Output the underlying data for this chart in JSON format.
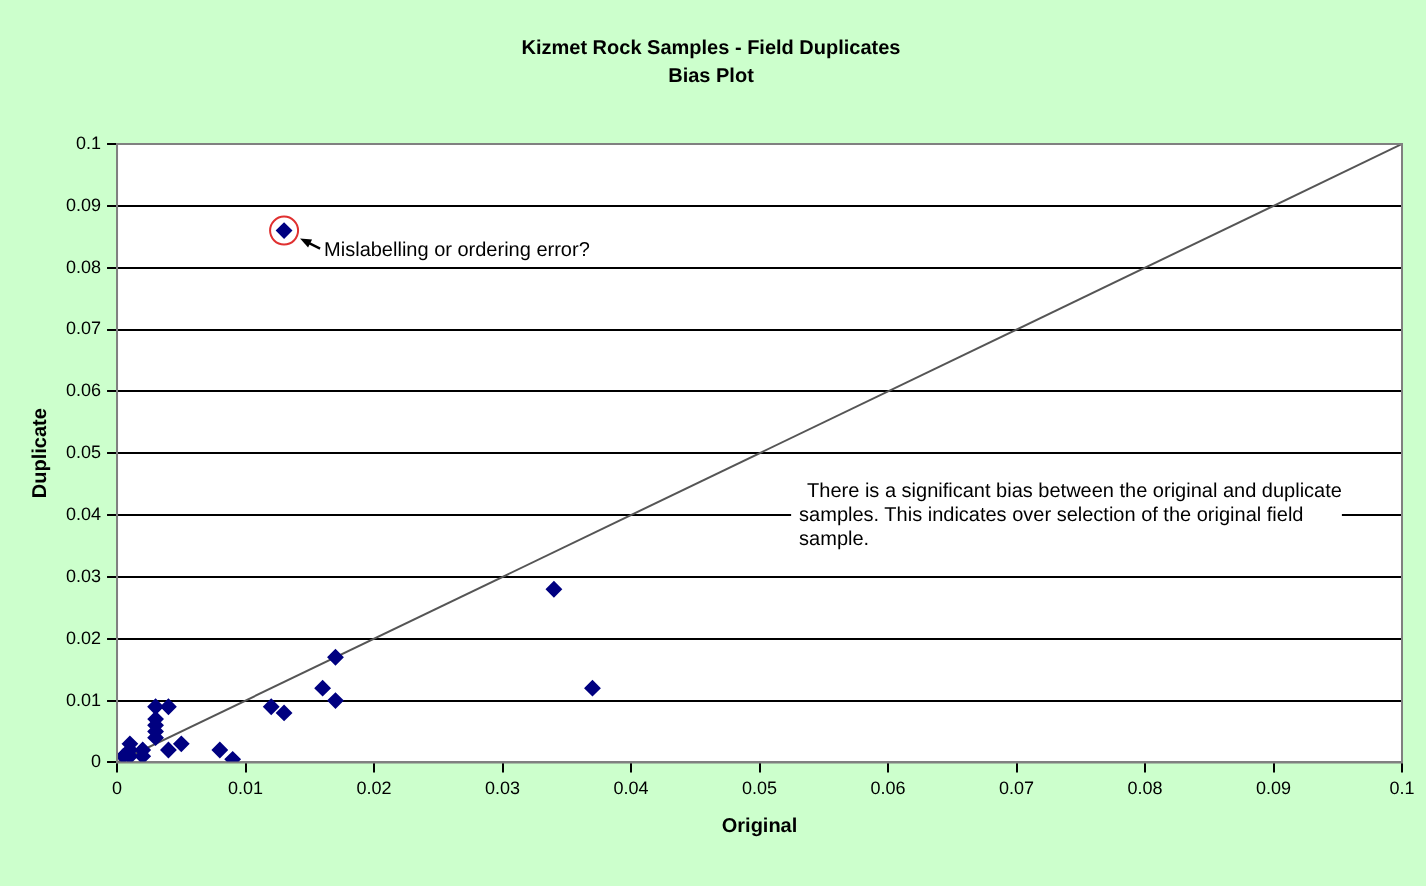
{
  "chart_data": {
    "type": "scatter",
    "title": "Kizmet Rock Samples - Field Duplicates",
    "subtitle": "Bias Plot",
    "xlabel": "Original",
    "ylabel": "Duplicate",
    "series": [
      {
        "color": "#000080",
        "marker": "diamond",
        "x": [
          0.0005,
          0.001,
          0.001,
          0.001,
          0.002,
          0.002,
          0.003,
          0.003,
          0.003,
          0.003,
          0.003,
          0.004,
          0.004,
          0.005,
          0.008,
          0.009,
          0.012,
          0.013,
          0.016,
          0.017,
          0.017,
          0.034,
          0.037,
          0.013
        ],
        "values": [
          0.001,
          0.001,
          0.002,
          0.003,
          0.001,
          0.002,
          0.004,
          0.005,
          0.006,
          0.007,
          0.009,
          0.009,
          0.002,
          0.003,
          0.002,
          0.0005,
          0.009,
          0.008,
          0.012,
          0.017,
          0.01,
          0.028,
          0.012,
          0.086
        ]
      },
      {
        "type": "line",
        "color": "#555555",
        "marker": "none",
        "x": [
          0,
          0.1
        ],
        "values": [
          0,
          0.1
        ]
      }
    ],
    "xlim": [
      0,
      0.1
    ],
    "xticks": [
      0,
      0.01,
      0.02,
      0.03,
      0.04,
      0.05,
      0.06,
      0.07,
      0.08,
      0.09,
      {
        "value": 0.1,
        "label": "0.1"
      }
    ],
    "ylim": [
      0,
      0.1
    ],
    "yticks": [
      0,
      0.01,
      0.02,
      0.03,
      0.04,
      0.05,
      0.06,
      0.07,
      0.08,
      0.09,
      {
        "value": 0.1,
        "label": "0.1"
      }
    ],
    "grid": "y",
    "legend": false,
    "annotations": [
      {
        "text": "Mislabelling or ordering error?",
        "x": 0.013,
        "y": 0.086
      },
      "There is a significant bias between the original and duplicate samples. This indicates over selection of the original field sample."
    ]
  }
}
